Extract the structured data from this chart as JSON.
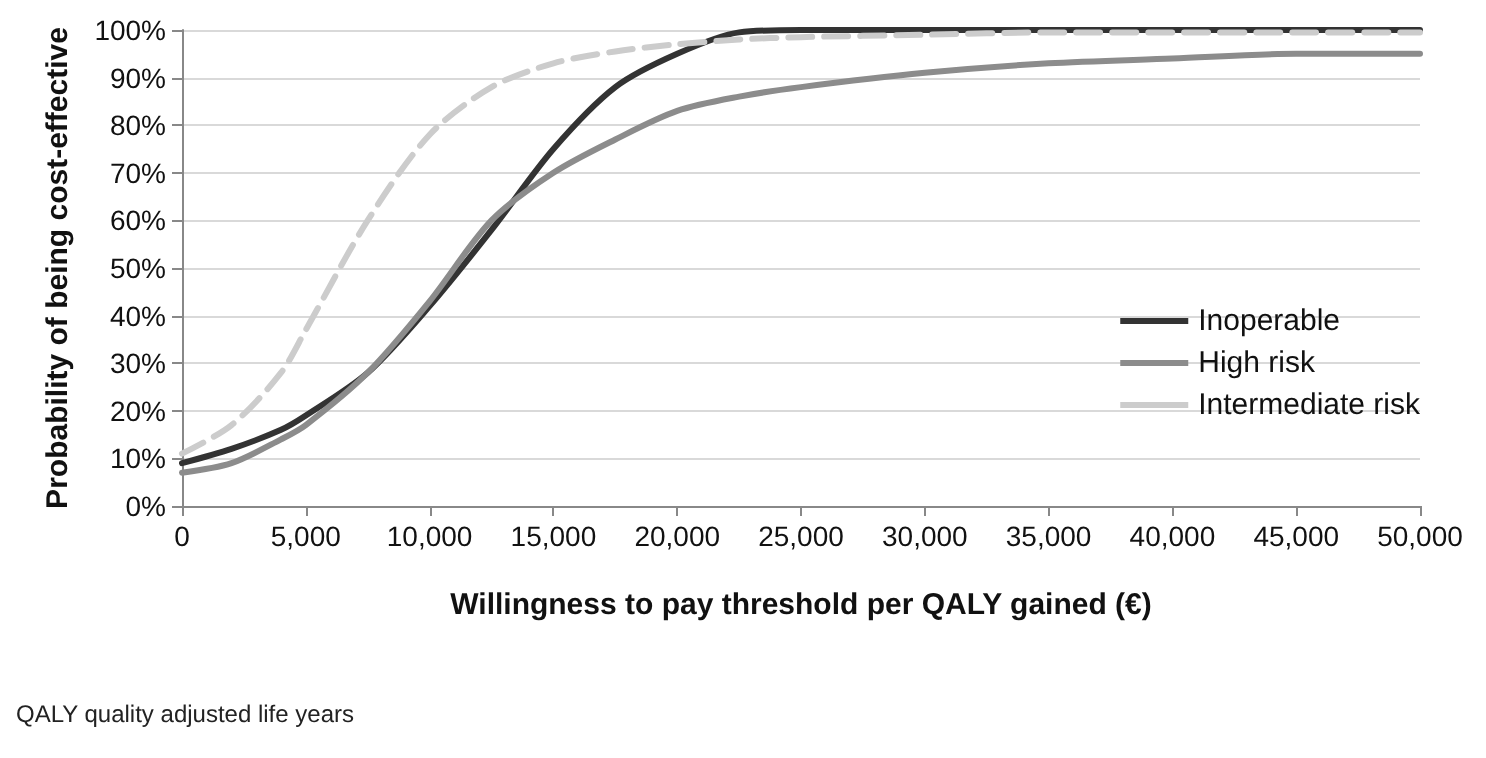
{
  "chart_data": {
    "type": "line",
    "xlabel": "Willingness to pay threshold per QALY gained (€)",
    "ylabel": "Probability of being cost-effective",
    "x": [
      0,
      2000,
      4000,
      5000,
      7500,
      10000,
      12500,
      15000,
      17500,
      20000,
      22500,
      25000,
      30000,
      35000,
      40000,
      45000,
      50000
    ],
    "series": [
      {
        "name": "Inoperable",
        "color": "#333333",
        "line_style": "solid",
        "values": [
          9,
          12,
          16,
          19,
          28,
          42,
          58,
          75,
          88,
          95,
          99.5,
          100,
          100,
          100,
          100,
          100,
          100
        ]
      },
      {
        "name": "High risk",
        "color": "#8c8c8c",
        "line_style": "solid",
        "values": [
          7,
          9,
          14,
          17,
          28,
          43,
          60,
          70,
          77,
          83,
          86,
          88,
          91,
          93,
          94,
          95,
          95
        ]
      },
      {
        "name": "Intermediate risk",
        "color": "#cccccc",
        "line_style": "dashed",
        "values": [
          11,
          17,
          28,
          37,
          60,
          78,
          88,
          93,
          95.5,
          97,
          98,
          98.5,
          99,
          99.5,
          99.5,
          99.5,
          99.5
        ]
      }
    ],
    "xlim": [
      0,
      50000
    ],
    "xticks": [
      {
        "value": 0,
        "label": "0"
      },
      {
        "value": 5000,
        "label": "5,000"
      },
      {
        "value": 10000,
        "label": "10,000"
      },
      {
        "value": 15000,
        "label": "15,000"
      },
      {
        "value": 20000,
        "label": "20,000"
      },
      {
        "value": 25000,
        "label": "25,000"
      },
      {
        "value": 30000,
        "label": "30,000"
      },
      {
        "value": 35000,
        "label": "35,000"
      },
      {
        "value": 40000,
        "label": "40,000"
      },
      {
        "value": 45000,
        "label": "45,000"
      },
      {
        "value": 50000,
        "label": "50,000"
      }
    ],
    "ylim": [
      0,
      100
    ],
    "yticks": [
      {
        "value": 0,
        "label": "0%"
      },
      {
        "value": 10,
        "label": "10%"
      },
      {
        "value": 20,
        "label": "20%"
      },
      {
        "value": 30,
        "label": "30%"
      },
      {
        "value": 40,
        "label": "40%"
      },
      {
        "value": 50,
        "label": "50%"
      },
      {
        "value": 60,
        "label": "60%"
      },
      {
        "value": 70,
        "label": "70%"
      },
      {
        "value": 80,
        "label": "80%"
      },
      {
        "value": 90,
        "label": "90%"
      },
      {
        "value": 100,
        "label": "100%"
      }
    ],
    "grid": "y",
    "legend": "right",
    "marker": "none",
    "annotations": [
      "QALY quality adjusted life years"
    ]
  }
}
